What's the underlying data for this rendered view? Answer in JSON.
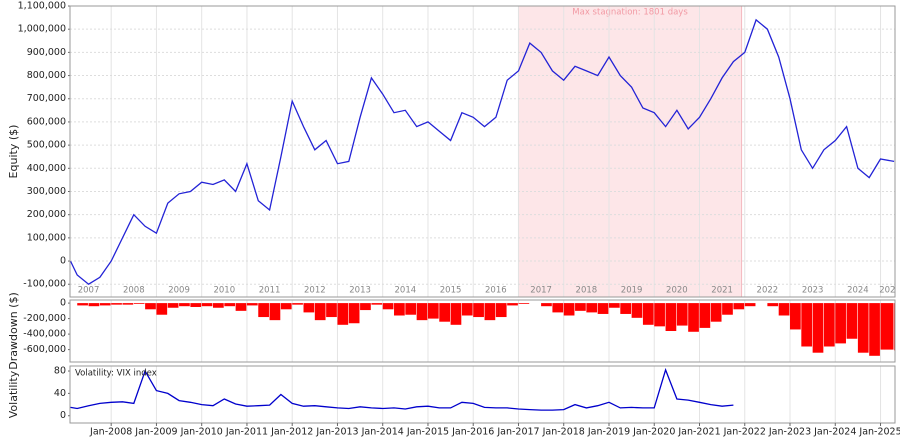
{
  "chart_data": [
    {
      "type": "line",
      "y_label": "Equity ($)",
      "color": "#2323d6",
      "grid": true,
      "xlim": [
        2007.09,
        2025.32
      ],
      "ylim": [
        -155000,
        1100000
      ],
      "yticks": [
        {
          "value": -100000,
          "label": "-100,000"
        },
        0,
        {
          "value": 100000,
          "label": "100,000"
        },
        {
          "value": 200000,
          "label": "200,000"
        },
        {
          "value": 300000,
          "label": "300,000"
        },
        {
          "value": 400000,
          "label": "400,000"
        },
        {
          "value": 500000,
          "label": "500,000"
        },
        {
          "value": 600000,
          "label": "600,000"
        },
        {
          "value": 700000,
          "label": "700,000"
        },
        {
          "value": 800000,
          "label": "800,000"
        },
        {
          "value": 900000,
          "label": "900,000"
        },
        {
          "value": 1000000,
          "label": "1,000,000"
        },
        {
          "value": 1100000,
          "label": "1,100,000"
        }
      ],
      "year_ticks": [
        {
          "value": 2007.5,
          "label": "2007"
        },
        {
          "value": 2008.5,
          "label": "2008"
        },
        {
          "value": 2009.5,
          "label": "2009"
        },
        {
          "value": 2010.5,
          "label": "2010"
        },
        {
          "value": 2011.5,
          "label": "2011"
        },
        {
          "value": 2012.5,
          "label": "2012"
        },
        {
          "value": 2013.5,
          "label": "2013"
        },
        {
          "value": 2014.5,
          "label": "2014"
        },
        {
          "value": 2015.5,
          "label": "2015"
        },
        {
          "value": 2016.5,
          "label": "2016"
        },
        {
          "value": 2017.5,
          "label": "2017"
        },
        {
          "value": 2018.5,
          "label": "2018"
        },
        {
          "value": 2019.5,
          "label": "2019"
        },
        {
          "value": 2020.5,
          "label": "2020"
        },
        {
          "value": 2021.5,
          "label": "2021"
        },
        {
          "value": 2022.5,
          "label": "2022"
        },
        {
          "value": 2023.5,
          "label": "2023"
        },
        {
          "value": 2024.5,
          "label": "2024"
        },
        {
          "value": 2025.15,
          "label": "202"
        }
      ],
      "stagnation": {
        "start": 2017.0,
        "end": 2021.93,
        "label": "Max stagnation: 1801 days",
        "color": "#fde6e8"
      },
      "x": [
        2007.1,
        2007.25,
        2007.5,
        2007.75,
        2008,
        2008.25,
        2008.5,
        2008.75,
        2009,
        2009.25,
        2009.5,
        2009.75,
        2010,
        2010.25,
        2010.5,
        2010.75,
        2011,
        2011.25,
        2011.5,
        2011.75,
        2012,
        2012.25,
        2012.5,
        2012.75,
        2013,
        2013.25,
        2013.5,
        2013.75,
        2014,
        2014.25,
        2014.5,
        2014.75,
        2015,
        2015.25,
        2015.5,
        2015.75,
        2016,
        2016.25,
        2016.5,
        2016.75,
        2017,
        2017.25,
        2017.5,
        2017.75,
        2018,
        2018.25,
        2018.5,
        2018.75,
        2019,
        2019.25,
        2019.5,
        2019.75,
        2020,
        2020.25,
        2020.5,
        2020.75,
        2021,
        2021.25,
        2021.5,
        2021.75,
        2022,
        2022.25,
        2022.5,
        2022.75,
        2023,
        2023.25,
        2023.5,
        2023.75,
        2024,
        2024.25,
        2024.5,
        2024.75,
        2025,
        2025.3
      ],
      "values": [
        0,
        -60000,
        -100000,
        -70000,
        0,
        100000,
        200000,
        150000,
        120000,
        250000,
        290000,
        300000,
        340000,
        330000,
        350000,
        300000,
        420000,
        260000,
        220000,
        450000,
        690000,
        580000,
        480000,
        520000,
        420000,
        430000,
        620000,
        790000,
        720000,
        640000,
        650000,
        580000,
        600000,
        560000,
        520000,
        640000,
        620000,
        580000,
        620000,
        780000,
        820000,
        940000,
        900000,
        820000,
        780000,
        840000,
        820000,
        800000,
        880000,
        800000,
        750000,
        660000,
        640000,
        580000,
        650000,
        570000,
        620000,
        700000,
        790000,
        860000,
        900000,
        1040000,
        1000000,
        880000,
        700000,
        480000,
        400000,
        480000,
        520000,
        580000,
        400000,
        360000,
        440000,
        430000
      ]
    },
    {
      "type": "bar",
      "y_label": "Drawdown ($)",
      "color": "#ff0000",
      "xlim": [
        2007.09,
        2025.32
      ],
      "ylim": [
        -760000,
        40000
      ],
      "yticks": [
        0,
        {
          "value": -200000,
          "label": "-200,000"
        },
        {
          "value": -400000,
          "label": "-400,000"
        },
        {
          "value": -600000,
          "label": "-600,000"
        }
      ],
      "x": [
        2007.1,
        2007.25,
        2007.5,
        2007.75,
        2008,
        2008.25,
        2008.5,
        2008.75,
        2009,
        2009.25,
        2009.5,
        2009.75,
        2010,
        2010.25,
        2010.5,
        2010.75,
        2011,
        2011.25,
        2011.5,
        2011.75,
        2012,
        2012.25,
        2012.5,
        2012.75,
        2013,
        2013.25,
        2013.5,
        2013.75,
        2014,
        2014.25,
        2014.5,
        2014.75,
        2015,
        2015.25,
        2015.5,
        2015.75,
        2016,
        2016.25,
        2016.5,
        2016.75,
        2017,
        2017.25,
        2017.5,
        2017.75,
        2018,
        2018.25,
        2018.5,
        2018.75,
        2019,
        2019.25,
        2019.5,
        2019.75,
        2020,
        2020.25,
        2020.5,
        2020.75,
        2021,
        2021.25,
        2021.5,
        2021.75,
        2022,
        2022.25,
        2022.5,
        2022.75,
        2023,
        2023.25,
        2023.5,
        2023.75,
        2024,
        2024.25,
        2024.5,
        2024.75,
        2025,
        2025.3
      ],
      "values": [
        0,
        -30000,
        -40000,
        -30000,
        -20000,
        -20000,
        -10000,
        -80000,
        -150000,
        -60000,
        -40000,
        -50000,
        -40000,
        -60000,
        -40000,
        -100000,
        -30000,
        -180000,
        -220000,
        -80000,
        -20000,
        -120000,
        -220000,
        -180000,
        -280000,
        -260000,
        -90000,
        -20000,
        -80000,
        -160000,
        -150000,
        -220000,
        -200000,
        -240000,
        -280000,
        -160000,
        -180000,
        -220000,
        -180000,
        -30000,
        -10000,
        0,
        -40000,
        -120000,
        -160000,
        -100000,
        -120000,
        -140000,
        -60000,
        -140000,
        -190000,
        -280000,
        -300000,
        -360000,
        -290000,
        -370000,
        -320000,
        -240000,
        -150000,
        -80000,
        -40000,
        0,
        -40000,
        -160000,
        -340000,
        -560000,
        -640000,
        -560000,
        -520000,
        -460000,
        -640000,
        -680000,
        -600000,
        -610000
      ]
    },
    {
      "type": "line",
      "y_label": "Volatility",
      "xlim": [
        2007.09,
        2025.32
      ],
      "ylim": [
        -13,
        89
      ],
      "yticks": [
        0,
        40,
        80
      ],
      "xticks": [
        {
          "value": 2008,
          "label": "Jan-2008"
        },
        {
          "value": 2009,
          "label": "Jan-2009"
        },
        {
          "value": 2010,
          "label": "Jan-2010"
        },
        {
          "value": 2011,
          "label": "Jan-2011"
        },
        {
          "value": 2012,
          "label": "Jan-2012"
        },
        {
          "value": 2013,
          "label": "Jan-2013"
        },
        {
          "value": 2014,
          "label": "Jan-2014"
        },
        {
          "value": 2015,
          "label": "Jan-2015"
        },
        {
          "value": 2016,
          "label": "Jan-2016"
        },
        {
          "value": 2017,
          "label": "Jan-2017"
        },
        {
          "value": 2018,
          "label": "Jan-2018"
        },
        {
          "value": 2019,
          "label": "Jan-2019"
        },
        {
          "value": 2020,
          "label": "Jan-2020"
        },
        {
          "value": 2021,
          "label": "Jan-2021"
        },
        {
          "value": 2022,
          "label": "Jan-2022"
        },
        {
          "value": 2023,
          "label": "Jan-2023"
        },
        {
          "value": 2024,
          "label": "Jan-2024"
        },
        {
          "value": 2025,
          "label": "Jan-2025"
        }
      ],
      "x": [
        2007.1,
        2007.25,
        2007.5,
        2007.75,
        2008,
        2008.25,
        2008.5,
        2008.75,
        2009,
        2009.25,
        2009.5,
        2009.75,
        2010,
        2010.25,
        2010.5,
        2010.75,
        2011,
        2011.25,
        2011.5,
        2011.75,
        2012,
        2012.25,
        2012.5,
        2012.75,
        2013,
        2013.25,
        2013.5,
        2013.75,
        2014,
        2014.25,
        2014.5,
        2014.75,
        2015,
        2015.25,
        2015.5,
        2015.75,
        2016,
        2016.25,
        2016.5,
        2016.75,
        2017,
        2017.25,
        2017.5,
        2017.75,
        2018,
        2018.25,
        2018.5,
        2018.75,
        2019,
        2019.25,
        2019.5,
        2019.75,
        2020,
        2020.25,
        2020.5,
        2020.75,
        2021,
        2021.25,
        2021.5,
        2021.75,
        2022,
        2022.25,
        2022.5,
        2022.75,
        2023,
        2023.25,
        2023.5,
        2023.75,
        2024,
        2024.25,
        2024.5,
        2024.75,
        2025,
        2025.3
      ],
      "series": [
        {
          "name": "Volatility: VIX index",
          "color": "#0000cc",
          "values": [
            15,
            13,
            18,
            22,
            24,
            25,
            22,
            80,
            45,
            40,
            27,
            24,
            20,
            18,
            30,
            21,
            17,
            18,
            19,
            38,
            22,
            17,
            18,
            16,
            14,
            13,
            16,
            14,
            13,
            14,
            12,
            16,
            17,
            14,
            14,
            24,
            22,
            15,
            14,
            14,
            12,
            11,
            10,
            10,
            11,
            20,
            14,
            18,
            24,
            14,
            15,
            14,
            14,
            82,
            30,
            28,
            24,
            20,
            17,
            19,
            null,
            null,
            null,
            null,
            null,
            null,
            null,
            null,
            null,
            null,
            null,
            null,
            null,
            null
          ]
        }
      ]
    }
  ]
}
